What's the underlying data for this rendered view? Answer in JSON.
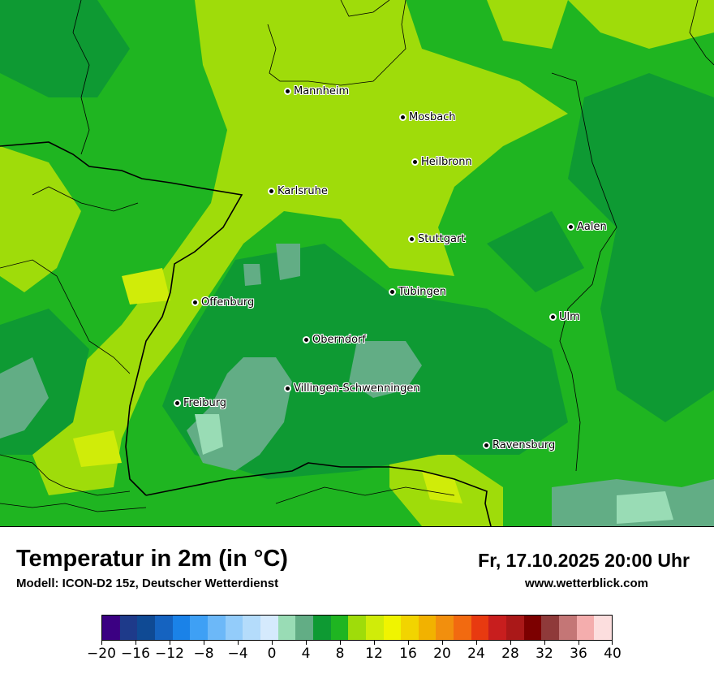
{
  "map": {
    "cities": [
      {
        "name": "Mannheim"
      },
      {
        "name": "Mosbach"
      },
      {
        "name": "Heilbronn"
      },
      {
        "name": "Karlsruhe"
      },
      {
        "name": "Aalen"
      },
      {
        "name": "Stuttgart"
      },
      {
        "name": "Tübingen"
      },
      {
        "name": "Offenburg"
      },
      {
        "name": "Ulm"
      },
      {
        "name": "Oberndorf"
      },
      {
        "name": "Villingen-Schwenningen"
      },
      {
        "name": "Freiburg"
      },
      {
        "name": "Ravensburg"
      }
    ]
  },
  "footer": {
    "title": "Temperatur in 2m (in °C)",
    "model": "Modell: ICON-D2 15z, Deutscher Wetterdienst",
    "datetime": "Fr, 17.10.2025 20:00 Uhr",
    "website": "www.wetterblick.com"
  },
  "legend": {
    "tick_labels": [
      "−20",
      "−16",
      "−12",
      "−8",
      "−4",
      "0",
      "4",
      "8",
      "12",
      "16",
      "20",
      "24",
      "28",
      "32",
      "36",
      "40"
    ],
    "colors": [
      "#3b0082",
      "#1e3a8a",
      "#0f4a94",
      "#1563c0",
      "#1a82e8",
      "#3ea0f5",
      "#6cb8f8",
      "#93ccfa",
      "#b4dcfb",
      "#d5eafd",
      "#99dcb5",
      "#62ad85",
      "#0e9a33",
      "#1fb521",
      "#9fdc0a",
      "#d0ec09",
      "#f0f400",
      "#f2d400",
      "#f2b200",
      "#f28f0d",
      "#f26a10",
      "#e83a10",
      "#c81e1e",
      "#aa1818",
      "#7c0000",
      "#8f3a3a",
      "#c47676",
      "#f4adad",
      "#fcdede"
    ]
  }
}
